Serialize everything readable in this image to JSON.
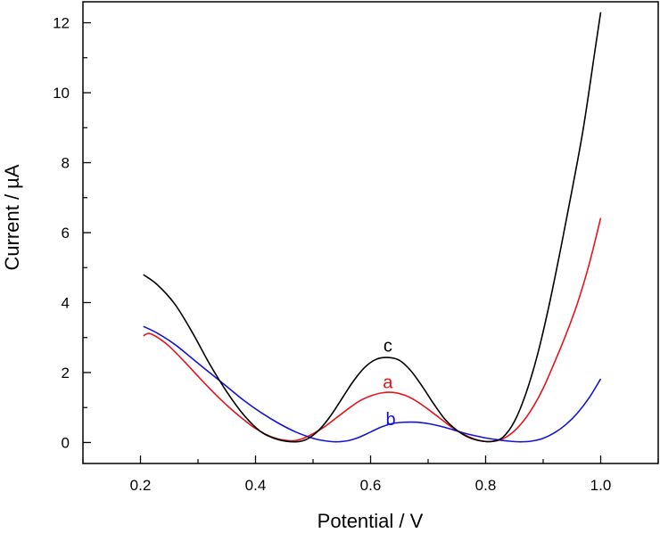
{
  "chart_data": {
    "type": "line",
    "xlabel": "Potential / V",
    "ylabel": "Current / µA",
    "xlim": [
      0.1,
      1.1
    ],
    "ylim": [
      -0.6,
      12.6
    ],
    "xticks": [
      0.2,
      0.4,
      0.6,
      0.8,
      1.0
    ],
    "xtick_labels": [
      "0.2",
      "0.4",
      "0.6",
      "0.8",
      "1.0"
    ],
    "yticks": [
      0,
      2,
      4,
      6,
      8,
      10,
      12
    ],
    "ytick_labels": [
      "0",
      "2",
      "4",
      "6",
      "8",
      "10",
      "12"
    ],
    "grid": false,
    "series": [
      {
        "name": "a",
        "color": "#e8141c",
        "label_at": [
          0.63,
          1.55
        ],
        "x": [
          0.205,
          0.215,
          0.23,
          0.25,
          0.28,
          0.31,
          0.34,
          0.37,
          0.4,
          0.43,
          0.46,
          0.48,
          0.5,
          0.52,
          0.54,
          0.56,
          0.58,
          0.6,
          0.62,
          0.64,
          0.66,
          0.68,
          0.7,
          0.72,
          0.74,
          0.76,
          0.78,
          0.8,
          0.82,
          0.84,
          0.86,
          0.88,
          0.9,
          0.92,
          0.94,
          0.96,
          0.98,
          1.0
        ],
        "y": [
          3.05,
          3.12,
          3.0,
          2.75,
          2.25,
          1.72,
          1.22,
          0.78,
          0.4,
          0.15,
          0.05,
          0.1,
          0.25,
          0.45,
          0.7,
          0.95,
          1.18,
          1.33,
          1.42,
          1.43,
          1.35,
          1.18,
          0.95,
          0.7,
          0.45,
          0.25,
          0.1,
          0.03,
          0.05,
          0.2,
          0.5,
          0.95,
          1.55,
          2.3,
          3.1,
          4.0,
          5.1,
          6.42
        ]
      },
      {
        "name": "b",
        "color": "#1414d8",
        "label_at": [
          0.635,
          0.5
        ],
        "x": [
          0.205,
          0.23,
          0.26,
          0.29,
          0.32,
          0.35,
          0.38,
          0.41,
          0.44,
          0.47,
          0.5,
          0.52,
          0.54,
          0.56,
          0.58,
          0.6,
          0.62,
          0.64,
          0.66,
          0.68,
          0.7,
          0.72,
          0.74,
          0.76,
          0.78,
          0.8,
          0.82,
          0.84,
          0.86,
          0.88,
          0.9,
          0.92,
          0.94,
          0.96,
          0.98,
          1.0
        ],
        "y": [
          3.32,
          3.12,
          2.8,
          2.4,
          2.0,
          1.6,
          1.2,
          0.85,
          0.55,
          0.3,
          0.12,
          0.05,
          0.02,
          0.05,
          0.15,
          0.3,
          0.45,
          0.55,
          0.58,
          0.58,
          0.54,
          0.47,
          0.38,
          0.28,
          0.2,
          0.13,
          0.08,
          0.04,
          0.02,
          0.04,
          0.12,
          0.28,
          0.52,
          0.85,
          1.28,
          1.82
        ]
      },
      {
        "name": "c",
        "color": "#000000",
        "label_at": [
          0.63,
          2.6
        ],
        "x": [
          0.205,
          0.23,
          0.26,
          0.29,
          0.32,
          0.35,
          0.38,
          0.41,
          0.44,
          0.47,
          0.49,
          0.51,
          0.53,
          0.55,
          0.57,
          0.59,
          0.61,
          0.63,
          0.65,
          0.67,
          0.69,
          0.71,
          0.73,
          0.75,
          0.77,
          0.79,
          0.81,
          0.83,
          0.85,
          0.87,
          0.89,
          0.91,
          0.93,
          0.95,
          0.97,
          0.99,
          1.0
        ],
        "y": [
          4.8,
          4.5,
          3.95,
          3.15,
          2.25,
          1.45,
          0.78,
          0.3,
          0.08,
          0.02,
          0.1,
          0.35,
          0.75,
          1.25,
          1.75,
          2.15,
          2.38,
          2.43,
          2.35,
          2.05,
          1.6,
          1.1,
          0.65,
          0.35,
          0.15,
          0.05,
          0.03,
          0.15,
          0.6,
          1.4,
          2.5,
          3.9,
          5.5,
          7.2,
          9.0,
          11.2,
          12.3
        ]
      }
    ]
  }
}
